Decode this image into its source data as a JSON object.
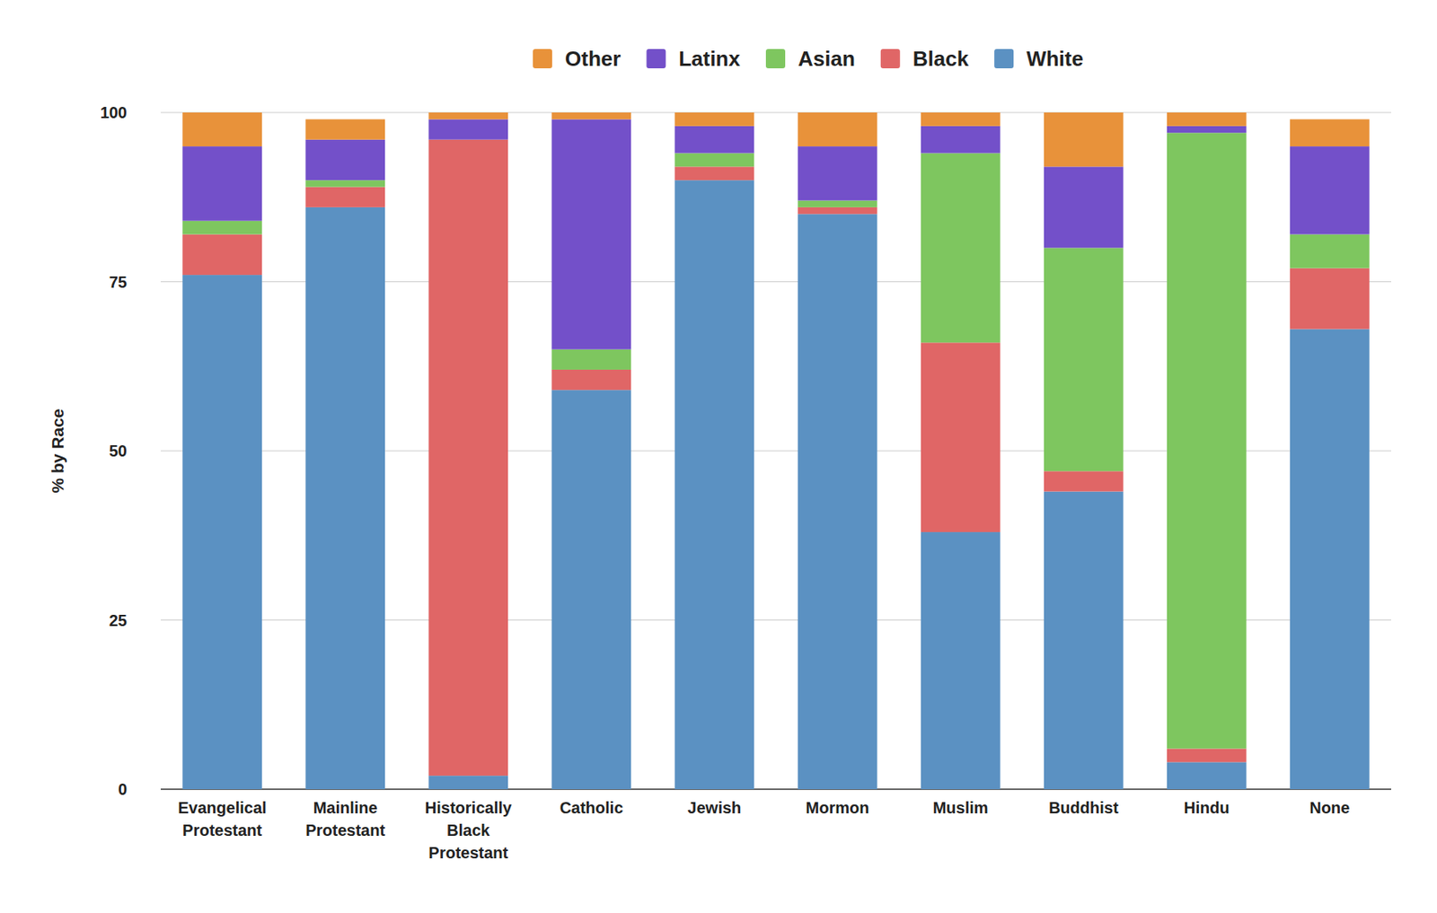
{
  "chart_data": {
    "type": "bar",
    "stacked": true,
    "grid": true,
    "legend": "top",
    "y_label": "% by Race",
    "categories": [
      "Evangelical Protestant",
      "Mainline Protestant",
      "Historically Black Protestant",
      "Catholic",
      "Jewish",
      "Mormon",
      "Muslim",
      "Buddhist",
      "Hindu",
      "None"
    ],
    "series": [
      {
        "name": "White",
        "color": "#5b91c2",
        "values": [
          76,
          86,
          2,
          59,
          90,
          85,
          38,
          44,
          4,
          68
        ]
      },
      {
        "name": "Black",
        "color": "#e06666",
        "values": [
          6,
          3,
          94,
          3,
          2,
          1,
          28,
          3,
          2,
          9
        ]
      },
      {
        "name": "Asian",
        "color": "#7ec65f",
        "values": [
          2,
          1,
          0,
          3,
          2,
          1,
          28,
          33,
          91,
          5
        ]
      },
      {
        "name": "Latinx",
        "color": "#7350c9",
        "values": [
          11,
          6,
          3,
          34,
          4,
          8,
          4,
          12,
          1,
          13
        ]
      },
      {
        "name": "Other",
        "color": "#e8923a",
        "values": [
          5,
          3,
          1,
          1,
          2,
          5,
          2,
          8,
          2,
          4
        ]
      }
    ],
    "ylim": [
      0,
      100
    ],
    "yticks": [
      0,
      25,
      50,
      75,
      100
    ]
  }
}
